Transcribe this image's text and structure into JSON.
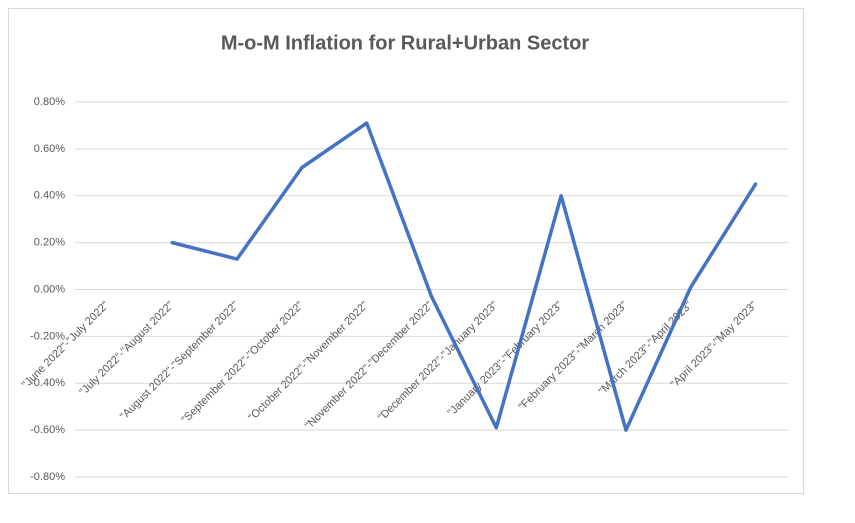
{
  "chart_data": {
    "type": "line",
    "title": "M-o-M Inflation for Rural+Urban Sector",
    "categories": [
      "\"June 2022\"-\"July 2022\"",
      "\"July 2022\"-\"August 2022\"",
      "\"August 2022\"-\"September 2022\"",
      "\"September 2022\"-\"October 2022\"",
      "\"October 2022\"-\"November 2022\"",
      "\"November 2022\"-\"December 2022\"",
      "\"December 2022\"-\"January 2023\"",
      "\"January 2023\"-\"February 2023\"",
      "\"February 2023\"-\"March 2023\"",
      "\"March 2023\"-\"April 2023\"",
      "\"April 2023\"-\"May 2023\""
    ],
    "series": [
      {
        "name": "M-o-M Inflation",
        "color": "#4472c4",
        "values": [
          null,
          0.2,
          0.13,
          0.52,
          0.71,
          -0.03,
          -0.59,
          0.4,
          -0.6,
          0.01,
          0.45
        ]
      }
    ],
    "ylim": [
      -0.8,
      0.8
    ],
    "yticks": [
      {
        "value": -0.8,
        "label": "-0.80%"
      },
      {
        "value": -0.6,
        "label": "-0.60%"
      },
      {
        "value": -0.4,
        "label": "-0.40%"
      },
      {
        "value": -0.2,
        "label": "-0.20%"
      },
      {
        "value": 0,
        "label": "0.00%"
      },
      {
        "value": 0.2,
        "label": "0.20%"
      },
      {
        "value": 0.4,
        "label": "0.40%"
      },
      {
        "value": 0.6,
        "label": "0.60%"
      },
      {
        "value": 0.8,
        "label": "0.80%"
      }
    ],
    "grid": true
  }
}
